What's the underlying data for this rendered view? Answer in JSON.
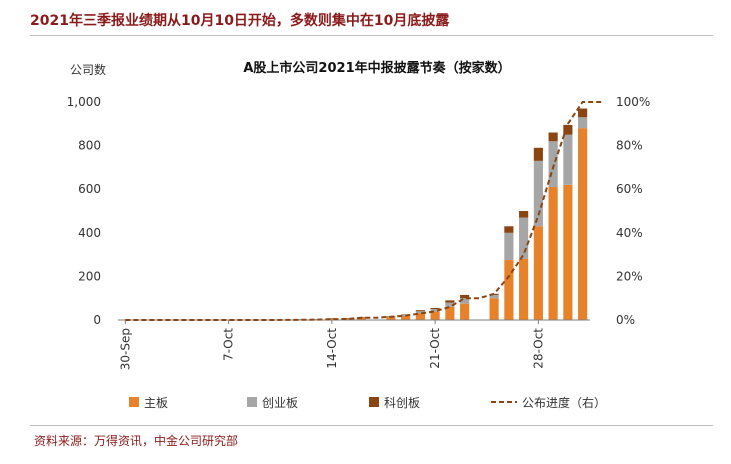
{
  "headline": "2021年三季报业绩期从10月10日开始，多数则集中在10月底披露",
  "source": "资料来源：万得资讯，中金公司研究部",
  "colors": {
    "main": "#e8822a",
    "chinext": "#a6a6a6",
    "star": "#8b4513",
    "line": "#8b4513",
    "headline": "#8b1a1a"
  },
  "chart_data": {
    "type": "bar",
    "title": "A股上市公司2021年中报披露节奏（按家数）",
    "ylabel": "公司数",
    "ylim": [
      0,
      1000
    ],
    "yticks": [
      "0",
      "200",
      "400",
      "600",
      "800",
      "1,000"
    ],
    "y2lim": [
      0,
      100
    ],
    "y2ticks": [
      "0%",
      "20%",
      "40%",
      "60%",
      "80%",
      "100%"
    ],
    "xtick_labels": [
      "30-Sep",
      "7-Oct",
      "14-Oct",
      "21-Oct",
      "28-Oct"
    ],
    "xtick_index": [
      0,
      7,
      14,
      21,
      28
    ],
    "stacked": true,
    "categories": [
      "30-Sep",
      "1-Oct",
      "2-Oct",
      "3-Oct",
      "4-Oct",
      "5-Oct",
      "6-Oct",
      "7-Oct",
      "8-Oct",
      "9-Oct",
      "10-Oct",
      "11-Oct",
      "12-Oct",
      "13-Oct",
      "14-Oct",
      "15-Oct",
      "16-Oct",
      "17-Oct",
      "18-Oct",
      "19-Oct",
      "20-Oct",
      "21-Oct",
      "22-Oct",
      "23-Oct",
      "24-Oct",
      "25-Oct",
      "26-Oct",
      "27-Oct",
      "28-Oct",
      "29-Oct",
      "30-Oct",
      "31-Oct"
    ],
    "series": [
      {
        "name": "主板",
        "values": [
          0,
          0,
          0,
          0,
          0,
          0,
          0,
          0,
          0,
          0,
          0,
          2,
          3,
          4,
          5,
          6,
          10,
          0,
          12,
          18,
          30,
          38,
          60,
          75,
          0,
          100,
          275,
          280,
          430,
          610,
          620,
          880
        ]
      },
      {
        "name": "创业板",
        "values": [
          0,
          0,
          0,
          0,
          0,
          0,
          0,
          0,
          0,
          0,
          0,
          0,
          1,
          1,
          2,
          2,
          3,
          0,
          4,
          6,
          10,
          12,
          20,
          25,
          0,
          15,
          125,
          190,
          300,
          210,
          230,
          50
        ]
      },
      {
        "name": "科创板",
        "values": [
          0,
          0,
          0,
          0,
          0,
          0,
          0,
          0,
          0,
          0,
          0,
          0,
          0,
          0,
          1,
          1,
          1,
          0,
          1,
          2,
          5,
          5,
          10,
          15,
          0,
          5,
          30,
          30,
          60,
          40,
          45,
          40
        ]
      }
    ],
    "line": {
      "name": "公布进度（右）",
      "values": [
        0,
        0,
        0,
        0,
        0,
        0,
        0,
        0,
        0,
        0,
        0,
        0.05,
        0.1,
        0.2,
        0.3,
        0.5,
        1,
        1,
        1.5,
        2,
        3,
        4,
        6,
        10,
        10,
        12,
        20,
        30,
        48,
        70,
        90,
        100
      ]
    }
  }
}
